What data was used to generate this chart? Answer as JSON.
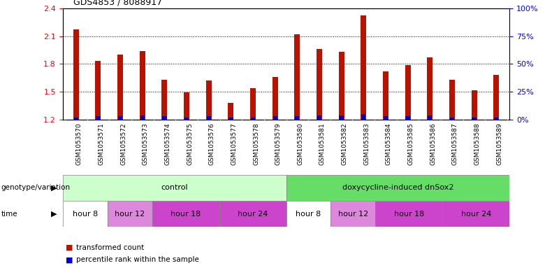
{
  "title": "GDS4853 / 8088917",
  "samples": [
    "GSM1053570",
    "GSM1053571",
    "GSM1053572",
    "GSM1053573",
    "GSM1053574",
    "GSM1053575",
    "GSM1053576",
    "GSM1053577",
    "GSM1053578",
    "GSM1053579",
    "GSM1053580",
    "GSM1053581",
    "GSM1053582",
    "GSM1053583",
    "GSM1053584",
    "GSM1053585",
    "GSM1053586",
    "GSM1053587",
    "GSM1053588",
    "GSM1053589"
  ],
  "red_values": [
    2.17,
    1.83,
    1.9,
    1.94,
    1.63,
    1.49,
    1.62,
    1.38,
    1.54,
    1.66,
    2.12,
    1.96,
    1.93,
    2.32,
    1.72,
    1.79,
    1.87,
    1.63,
    1.52,
    1.68
  ],
  "blue_values": [
    2,
    3,
    3,
    4,
    3,
    2,
    3,
    2,
    2,
    3,
    3,
    4,
    4,
    5,
    3,
    3,
    4,
    2,
    2,
    2
  ],
  "blue_max": 100,
  "ylim_left": [
    1.2,
    2.4
  ],
  "ylim_right": [
    0,
    100
  ],
  "yticks_left": [
    1.2,
    1.5,
    1.8,
    2.1,
    2.4
  ],
  "yticks_right": [
    0,
    25,
    50,
    75,
    100
  ],
  "bar_color_red": "#bb1100",
  "bar_color_blue": "#0000cc",
  "genotype_label": "genotype/variation",
  "genotype_groups": [
    {
      "label": "control",
      "start": 0,
      "end": 10,
      "color": "#ccffcc"
    },
    {
      "label": "doxycycline-induced dnSox2",
      "start": 10,
      "end": 20,
      "color": "#66dd66"
    }
  ],
  "time_groups": [
    {
      "label": "hour 8",
      "start": 0,
      "end": 2,
      "color": "#ffffff"
    },
    {
      "label": "hour 12",
      "start": 2,
      "end": 4,
      "color": "#dd88dd"
    },
    {
      "label": "hour 18",
      "start": 4,
      "end": 7,
      "color": "#cc44cc"
    },
    {
      "label": "hour 24",
      "start": 7,
      "end": 10,
      "color": "#cc44cc"
    },
    {
      "label": "hour 8",
      "start": 10,
      "end": 12,
      "color": "#ffffff"
    },
    {
      "label": "hour 12",
      "start": 12,
      "end": 14,
      "color": "#dd88dd"
    },
    {
      "label": "hour 18",
      "start": 14,
      "end": 17,
      "color": "#cc44cc"
    },
    {
      "label": "hour 24",
      "start": 17,
      "end": 20,
      "color": "#cc44cc"
    }
  ],
  "time_label": "time",
  "legend_red": "transformed count",
  "legend_blue": "percentile rank within the sample",
  "background_color": "#ffffff",
  "ticklabel_bg": "#d8d8d8"
}
